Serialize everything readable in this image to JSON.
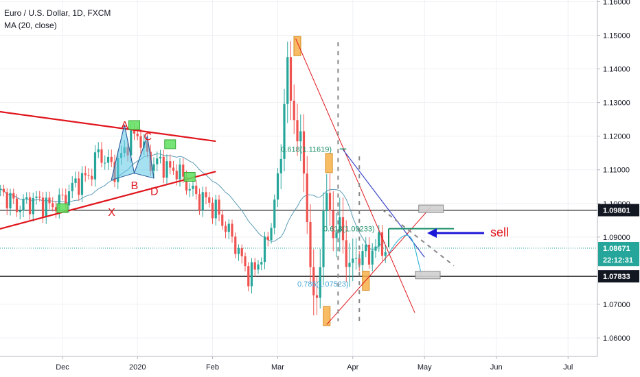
{
  "header": {
    "symbol_line": "Euro / U.S. Dollar, 1D, FXCM",
    "indicator_line": "MA (20, close)"
  },
  "chart_data": {
    "type": "candlestick",
    "y_axis": {
      "ylim": [
        1.0545,
        1.1605
      ],
      "ticks": [
        {
          "label": "1.06000",
          "value": 1.06
        },
        {
          "label": "1.07000",
          "value": 1.07
        },
        {
          "label": "1.09000",
          "value": 1.09
        },
        {
          "label": "1.10000",
          "value": 1.1
        },
        {
          "label": "1.11000",
          "value": 1.11
        },
        {
          "label": "1.12000",
          "value": 1.12
        },
        {
          "label": "1.13000",
          "value": 1.13
        },
        {
          "label": "1.14000",
          "value": 1.14
        },
        {
          "label": "1.15000",
          "value": 1.15
        },
        {
          "label": "1.16000",
          "value": 1.16
        }
      ]
    },
    "x_axis": {
      "ticks": [
        {
          "label": "Dec",
          "index": 20
        },
        {
          "label": "2020",
          "index": 43
        },
        {
          "label": "Feb",
          "index": 66
        },
        {
          "label": "Mar",
          "index": 86
        },
        {
          "label": "Apr",
          "index": 109
        },
        {
          "label": "May",
          "index": 131
        },
        {
          "label": "Jun",
          "index": 153
        },
        {
          "label": "Jul",
          "index": 175
        }
      ]
    },
    "price_tags": [
      {
        "label": "1.09801",
        "value": 1.09801,
        "style": "dark"
      },
      {
        "label": "1.08671",
        "value": 1.08671,
        "style": "teal"
      },
      {
        "label": "22:12:31",
        "value": 1.0832,
        "style": "teal"
      },
      {
        "label": "1.07833",
        "value": 1.07833,
        "style": "dark"
      }
    ],
    "horizontal_levels": [
      1.09801,
      1.07833
    ],
    "current_price": 1.08671,
    "pattern_labels": [
      {
        "label": "X",
        "index": 35,
        "value": 1.0975
      },
      {
        "label": "A",
        "index": 39,
        "value": 1.1234
      },
      {
        "label": "B",
        "index": 42,
        "value": 1.1055
      },
      {
        "label": "C",
        "index": 46,
        "value": 1.12
      },
      {
        "label": "D",
        "index": 48,
        "value": 1.1037
      }
    ],
    "fib_labels": [
      {
        "label": "0.618(1.11619)",
        "index": 87,
        "value": 1.1162,
        "color": "#1b8f6a"
      },
      {
        "label": "0.618(1.09233)",
        "index": 100,
        "value": 1.0925,
        "color": "#1b8f6a"
      },
      {
        "label": "0.786(1.07523)",
        "index": 92,
        "value": 1.0761,
        "color": "#4aa8d8"
      }
    ],
    "annotation": {
      "label": "sell",
      "color": "#e0151c"
    },
    "colors": {
      "up": "#26a69a",
      "down": "#ef5350",
      "ma": "#5b9bb5",
      "trend": "#e0151c"
    }
  }
}
